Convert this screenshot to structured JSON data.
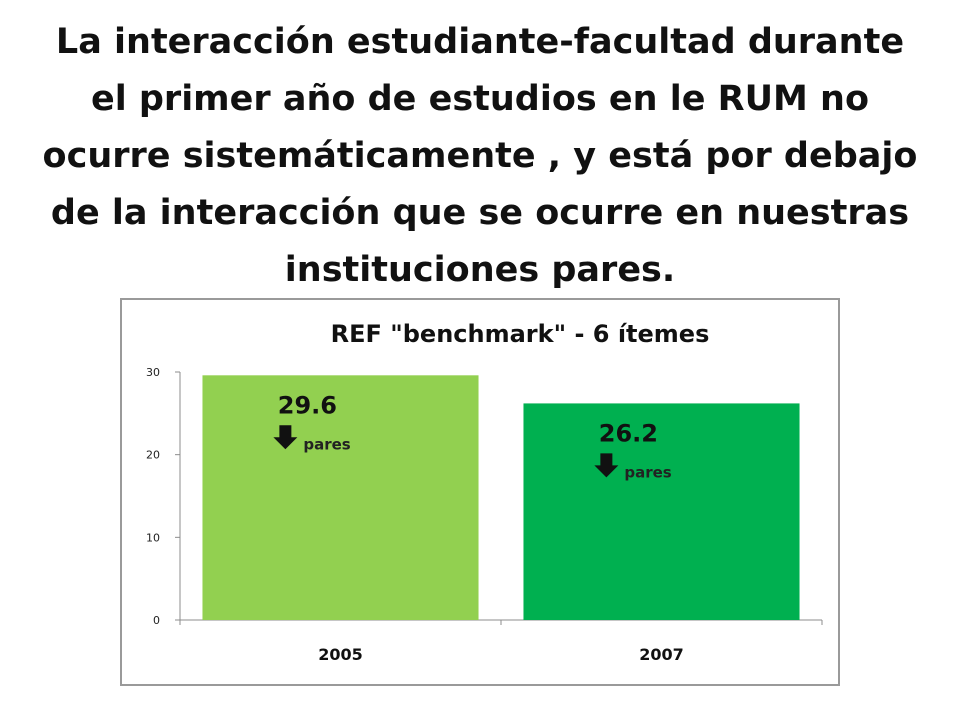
{
  "slide": {
    "title": "La interacción estudiante-facultad durante el primer año de estudios en le RUM no ocurre sistemáticamente , y está por debajo de la interacción que se ocurre en nuestras instituciones pares."
  },
  "chart_data": {
    "type": "bar",
    "title": "REF \"benchmark\" - 6 ítemes",
    "categories": [
      "2005",
      "2007"
    ],
    "values": [
      29.6,
      26.2
    ],
    "value_labels": [
      "29.6",
      "26.2"
    ],
    "annotations": [
      "pares",
      "pares"
    ],
    "annotation_icon": "arrow-down-icon",
    "bar_colors": [
      "#92d050",
      "#00b050"
    ],
    "ylim": [
      0,
      30
    ],
    "yticks": [
      0,
      10,
      20,
      30
    ],
    "xlabel": "",
    "ylabel": "",
    "grid": false,
    "legend": "none"
  }
}
